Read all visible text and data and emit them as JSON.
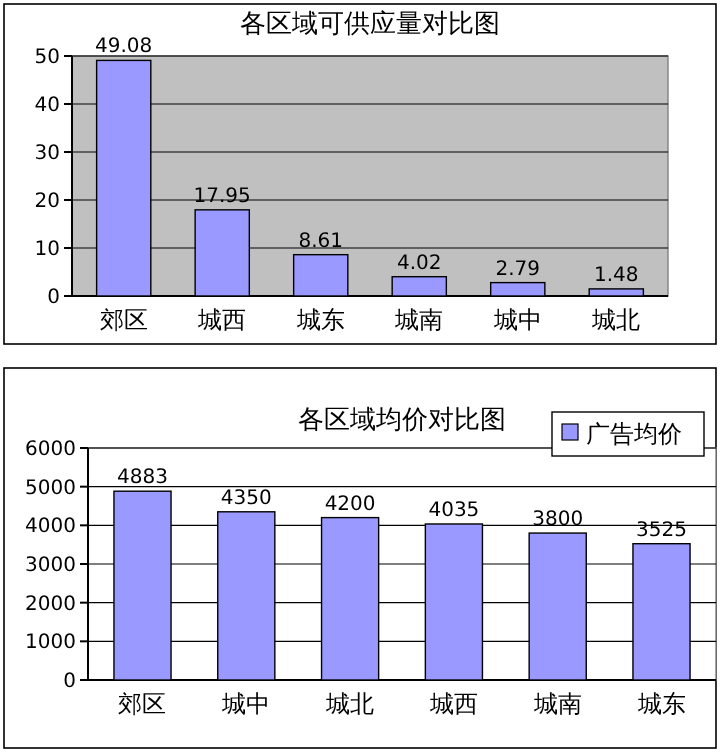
{
  "chart_data": [
    {
      "type": "bar",
      "title": "各区域可供应量对比图",
      "categories": [
        "郊区",
        "城西",
        "城东",
        "城南",
        "城中",
        "城北"
      ],
      "values": [
        49.08,
        17.95,
        8.61,
        4.02,
        2.79,
        1.48
      ],
      "color": "#9999ff",
      "ylim": [
        0,
        50
      ],
      "yticks": [
        0,
        10,
        20,
        30,
        40,
        50
      ],
      "grid": "y",
      "data_labels": true
    },
    {
      "type": "bar",
      "title": "各区域均价对比图",
      "categories": [
        "郊区",
        "城中",
        "城北",
        "城西",
        "城南",
        "城东"
      ],
      "series": [
        {
          "name": "广告均价",
          "color": "#9999ff",
          "values": [
            4883,
            4350,
            4200,
            4035,
            3800,
            3525
          ]
        }
      ],
      "ylim": [
        0,
        6000
      ],
      "yticks": [
        0,
        1000,
        2000,
        3000,
        4000,
        5000,
        6000
      ],
      "grid": "y",
      "data_labels": true,
      "legend": "top right"
    }
  ]
}
